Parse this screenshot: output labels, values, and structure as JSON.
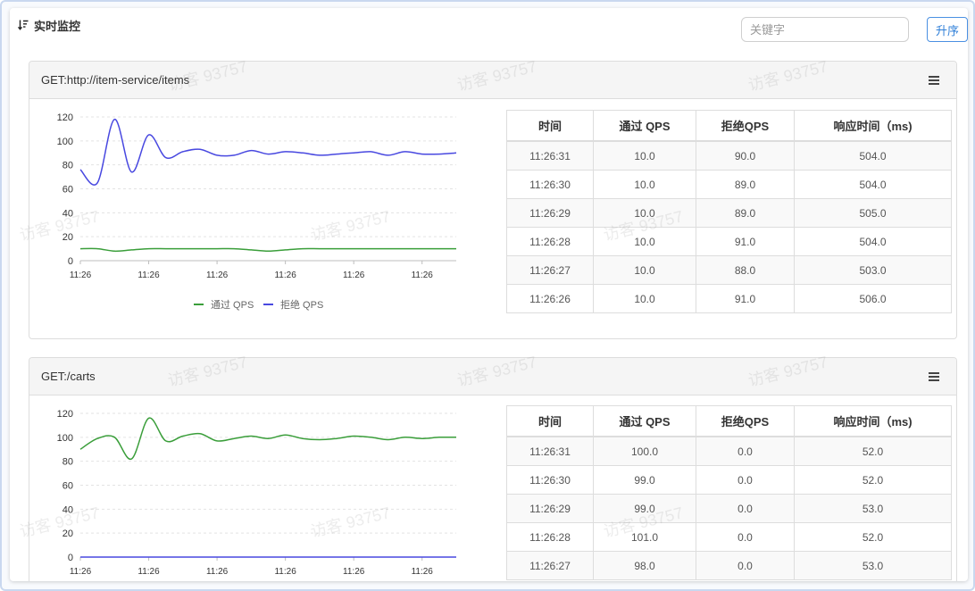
{
  "page": {
    "title": "实时监控",
    "title_icon": "sort-amount-down-icon",
    "search_placeholder": "关键字",
    "sort_button": "升序",
    "watermark": "访客 93757"
  },
  "colors": {
    "accent": "#2f7fd8",
    "pass_qps": "#3a9e3a",
    "reject_qps": "#4848e0",
    "card_header_bg": "#f5f5f5"
  },
  "cards": [
    {
      "title": "GET:http://item-service/items",
      "menu_icon": "hamburger-menu-icon",
      "table": {
        "headers": [
          "时间",
          "通过 QPS",
          "拒绝QPS",
          "响应时间（ms)"
        ],
        "rows": [
          [
            "11:26:31",
            "10.0",
            "90.0",
            "504.0"
          ],
          [
            "11:26:30",
            "10.0",
            "89.0",
            "504.0"
          ],
          [
            "11:26:29",
            "10.0",
            "89.0",
            "505.0"
          ],
          [
            "11:26:28",
            "10.0",
            "91.0",
            "504.0"
          ],
          [
            "11:26:27",
            "10.0",
            "88.0",
            "503.0"
          ],
          [
            "11:26:26",
            "10.0",
            "91.0",
            "506.0"
          ]
        ]
      }
    },
    {
      "title": "GET:/carts",
      "menu_icon": "hamburger-menu-icon",
      "table": {
        "headers": [
          "时间",
          "通过 QPS",
          "拒绝QPS",
          "响应时间（ms)"
        ],
        "rows": [
          [
            "11:26:31",
            "100.0",
            "0.0",
            "52.0"
          ],
          [
            "11:26:30",
            "99.0",
            "0.0",
            "52.0"
          ],
          [
            "11:26:29",
            "99.0",
            "0.0",
            "53.0"
          ],
          [
            "11:26:28",
            "101.0",
            "0.0",
            "52.0"
          ],
          [
            "11:26:27",
            "98.0",
            "0.0",
            "53.0"
          ]
        ]
      }
    }
  ],
  "chart_data": [
    {
      "type": "line",
      "ylim": [
        0,
        120
      ],
      "y_ticks": [
        0,
        20,
        40,
        60,
        80,
        100,
        120
      ],
      "x_tick_labels": [
        "11:26",
        "11:26",
        "11:26",
        "11:26",
        "11:26",
        "11:26"
      ],
      "grid": "dashed horizontal",
      "legend": "bottom-center",
      "series": [
        {
          "name": "通过 QPS",
          "color": "#3a9e3a",
          "values": [
            10,
            10,
            8,
            9,
            10,
            10,
            10,
            10,
            10,
            10,
            9,
            8,
            9,
            10,
            10,
            10,
            10,
            10,
            10,
            10,
            10,
            10,
            10
          ]
        },
        {
          "name": "拒绝 QPS",
          "color": "#4848e0",
          "values": [
            76,
            65,
            118,
            74,
            105,
            86,
            91,
            93,
            88,
            88,
            92,
            89,
            91,
            90,
            88,
            89,
            90,
            91,
            88,
            91,
            89,
            89,
            90
          ]
        }
      ]
    },
    {
      "type": "line",
      "ylim": [
        0,
        120
      ],
      "y_ticks": [
        0,
        20,
        40,
        60,
        80,
        100,
        120
      ],
      "x_tick_labels": [
        "11:26",
        "11:26",
        "11:26",
        "11:26",
        "11:26",
        "11:26"
      ],
      "grid": "dashed horizontal",
      "series": [
        {
          "color": "#3a9e3a",
          "values": [
            90,
            99,
            100,
            82,
            116,
            97,
            101,
            103,
            97,
            99,
            101,
            99,
            102,
            99,
            98,
            99,
            101,
            100,
            98,
            100,
            99,
            100,
            100
          ]
        },
        {
          "color": "#4848e0",
          "values": [
            0,
            0,
            0,
            0,
            0,
            0,
            0,
            0,
            0,
            0,
            0,
            0,
            0,
            0,
            0,
            0,
            0,
            0,
            0,
            0,
            0,
            0,
            0
          ]
        }
      ]
    }
  ]
}
